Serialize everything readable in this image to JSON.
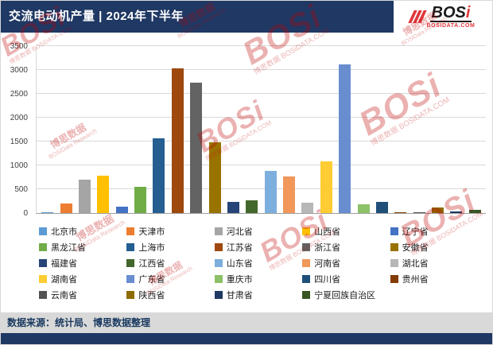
{
  "header": {
    "title": "交流电动机产量 | 2024年下半年"
  },
  "logo": {
    "main": "BOS",
    "accent": "i",
    "domain": "BOSIDATA.COM"
  },
  "chart_data": {
    "type": "bar",
    "title": "交流电动机产量 | 2024年下半年",
    "xlabel": "",
    "ylabel": "",
    "ylim": [
      0,
      3500
    ],
    "yticks": [
      0,
      500,
      1000,
      1500,
      2000,
      2500,
      3000,
      3500
    ],
    "grid": true,
    "legend_position": "bottom",
    "categories": [
      "北京市",
      "天津市",
      "河北省",
      "山西省",
      "辽宁省",
      "黑龙江省",
      "上海市",
      "江苏省",
      "浙江省",
      "安徽省",
      "福建省",
      "江西省",
      "山东省",
      "河南省",
      "湖北省",
      "湖南省",
      "广东省",
      "重庆市",
      "四川省",
      "贵州省",
      "云南省",
      "陕西省",
      "甘肃省",
      "宁夏回族自治区"
    ],
    "values": [
      20,
      200,
      700,
      790,
      140,
      550,
      1570,
      3030,
      2730,
      1480,
      240,
      260,
      880,
      760,
      210,
      1080,
      3120,
      180,
      230,
      20,
      20,
      110,
      40,
      60
    ],
    "colors": [
      "#5B9BD5",
      "#ED7D31",
      "#A5A5A5",
      "#FFC000",
      "#4472C4",
      "#70AD47",
      "#255E91",
      "#9E480E",
      "#636363",
      "#997300",
      "#264478",
      "#43682B",
      "#7CAFDD",
      "#F1975A",
      "#B7B7B7",
      "#FFCD33",
      "#698ED0",
      "#8CC168",
      "#1F4E79",
      "#833C00",
      "#525252",
      "#8F6C00",
      "#1F3864",
      "#375623"
    ]
  },
  "source": {
    "text": "数据来源：统计局、博思数据整理"
  },
  "watermark": {
    "brand": "BOSi",
    "cn": "博思数据",
    "research": "BOSiData Research",
    "domain": "BOSiDATA.COM"
  },
  "theme": {
    "header_bg": "#1F3864",
    "footer_bg": "#1F3864",
    "source_bg": "#D9D9D9",
    "watermark_color": "#C00000",
    "logo_red": "#E2363B",
    "logo_black": "#1A1A1A"
  }
}
